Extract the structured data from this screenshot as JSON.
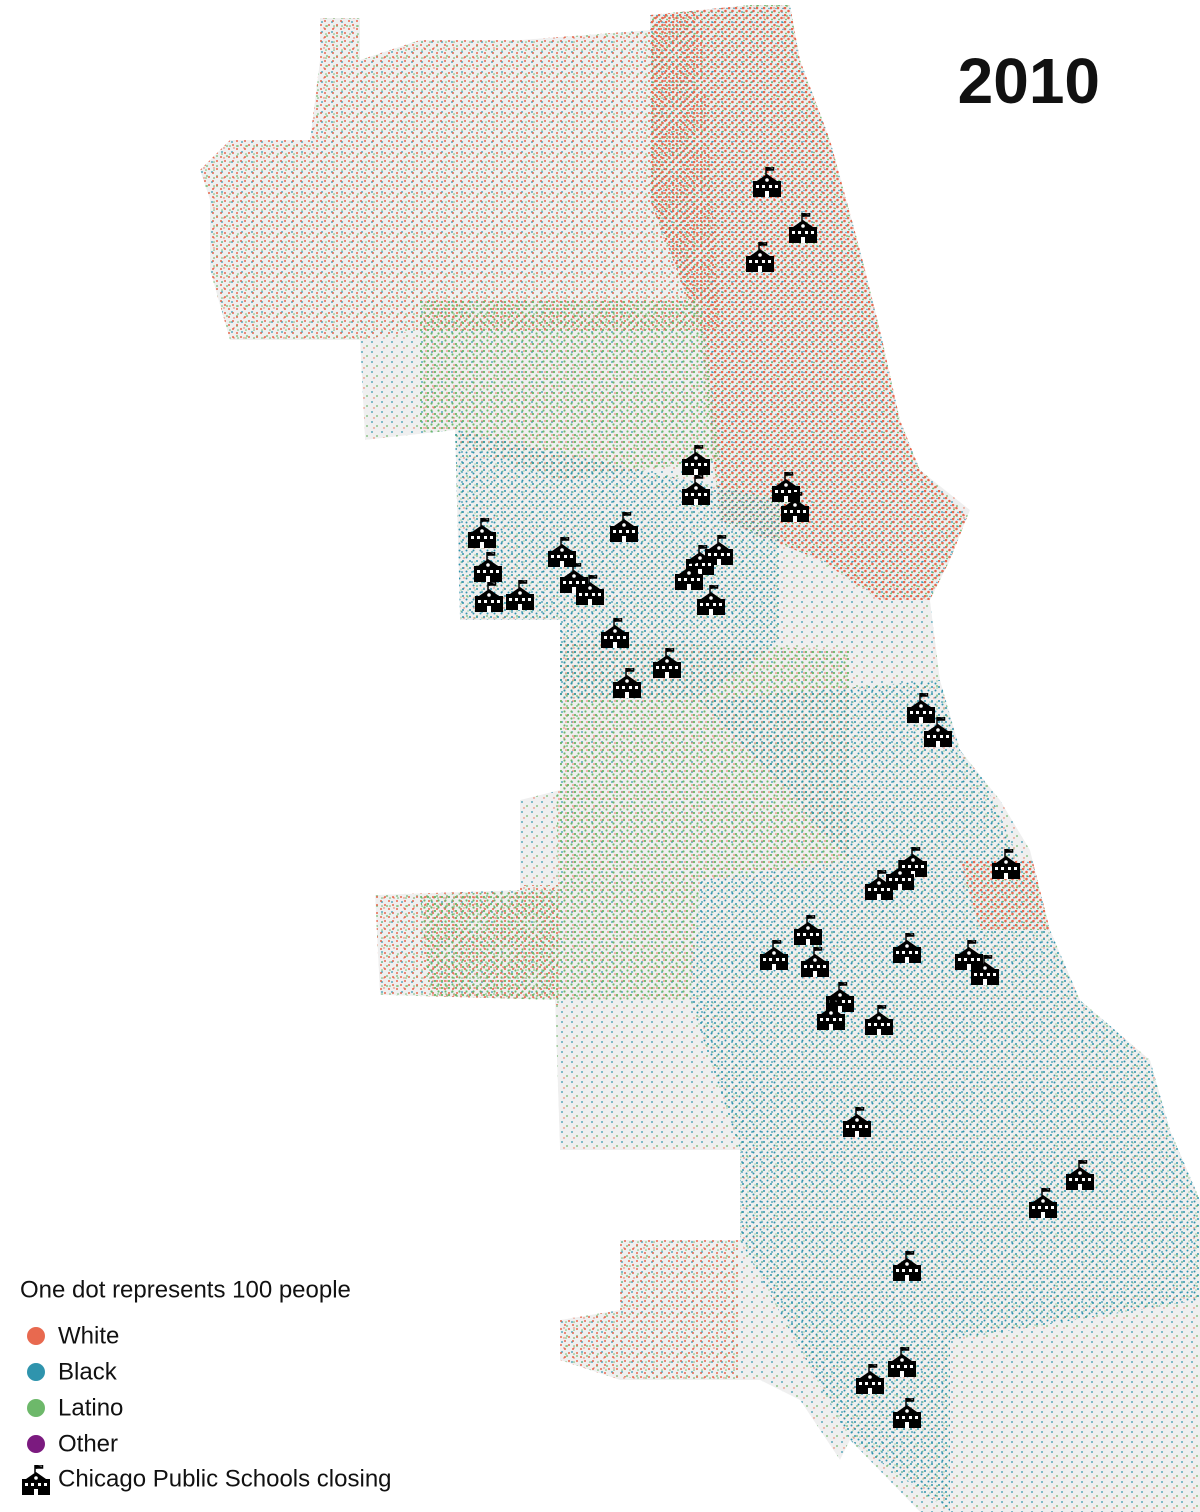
{
  "title": "2010",
  "note": "One dot represents 100 people",
  "legend": [
    {
      "label": "White",
      "color": "#e8694f"
    },
    {
      "label": "Black",
      "color": "#2f94ad"
    },
    {
      "label": "Latino",
      "color": "#6db86a"
    },
    {
      "label": "Other",
      "color": "#7b1a7f"
    }
  ],
  "schools_label": "Chicago Public Schools closing"
}
